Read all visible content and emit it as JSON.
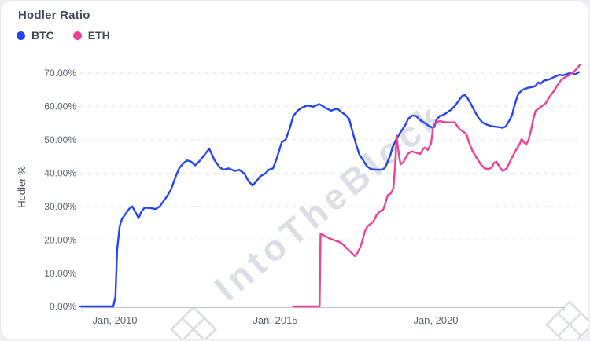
{
  "card": {
    "title": "Hodler Ratio"
  },
  "legend": [
    {
      "label": "BTC",
      "color": "#2446f0"
    },
    {
      "label": "ETH",
      "color": "#ee4195"
    }
  ],
  "y_axis": {
    "title": "Hodler %",
    "tick_values": [
      0,
      10,
      20,
      30,
      40,
      50,
      60,
      70
    ],
    "tick_labels": [
      "0.00%",
      "10.00%",
      "20.00%",
      "30.00%",
      "40.00%",
      "50.00%",
      "60.00%",
      "70.00%"
    ]
  },
  "x_axis": {
    "tick_years": [
      2010,
      2015,
      2020
    ],
    "tick_labels": [
      "Jan, 2010",
      "Jan, 2015",
      "Jan, 2020"
    ]
  },
  "watermark": {
    "text": "IntoTheBlock"
  },
  "colors": {
    "grid": "#e4e6eb",
    "axis": "#c2c6cf",
    "watermark": "#bdc3ce"
  },
  "chart_data": {
    "type": "line",
    "title": "Hodler Ratio",
    "xlabel": "",
    "ylabel": "Hodler %",
    "ylim": [
      0,
      70
    ],
    "xlim": [
      2008.9,
      2024.5
    ],
    "x_unit": "year (decimal)",
    "grid": "horizontal-dashed",
    "legend_position": "top-left",
    "series": [
      {
        "name": "BTC",
        "color": "#2446f0",
        "points": [
          [
            2008.9,
            0
          ],
          [
            2009.5,
            0
          ],
          [
            2009.95,
            0
          ],
          [
            2010.02,
            3
          ],
          [
            2010.07,
            17
          ],
          [
            2010.15,
            24
          ],
          [
            2010.22,
            26.2
          ],
          [
            2010.32,
            27.6
          ],
          [
            2010.44,
            29.2
          ],
          [
            2010.54,
            30.0
          ],
          [
            2010.66,
            28.0
          ],
          [
            2010.74,
            26.5
          ],
          [
            2010.83,
            28.5
          ],
          [
            2010.93,
            29.6
          ],
          [
            2011.1,
            29.5
          ],
          [
            2011.27,
            29.2
          ],
          [
            2011.4,
            30.0
          ],
          [
            2011.52,
            31.6
          ],
          [
            2011.64,
            33.2
          ],
          [
            2011.76,
            35.3
          ],
          [
            2011.89,
            38.8
          ],
          [
            2012.01,
            41.5
          ],
          [
            2012.13,
            42.9
          ],
          [
            2012.25,
            43.8
          ],
          [
            2012.38,
            43.4
          ],
          [
            2012.5,
            42.3
          ],
          [
            2012.62,
            43.4
          ],
          [
            2012.77,
            45.2
          ],
          [
            2012.94,
            47.3
          ],
          [
            2013.11,
            43.8
          ],
          [
            2013.26,
            41.8
          ],
          [
            2013.38,
            41.0
          ],
          [
            2013.55,
            41.4
          ],
          [
            2013.73,
            40.6
          ],
          [
            2013.87,
            41.0
          ],
          [
            2014.04,
            39.8
          ],
          [
            2014.17,
            37.5
          ],
          [
            2014.29,
            36.3
          ],
          [
            2014.41,
            37.5
          ],
          [
            2014.53,
            39.0
          ],
          [
            2014.68,
            39.8
          ],
          [
            2014.8,
            41.0
          ],
          [
            2014.93,
            41.4
          ],
          [
            2015.05,
            44.5
          ],
          [
            2015.2,
            49.3
          ],
          [
            2015.32,
            50.0
          ],
          [
            2015.44,
            53.2
          ],
          [
            2015.56,
            57.1
          ],
          [
            2015.69,
            58.7
          ],
          [
            2015.81,
            59.5
          ],
          [
            2016.0,
            60.3
          ],
          [
            2016.18,
            59.9
          ],
          [
            2016.37,
            60.7
          ],
          [
            2016.57,
            59.5
          ],
          [
            2016.74,
            58.7
          ],
          [
            2016.84,
            59.1
          ],
          [
            2016.94,
            59.3
          ],
          [
            2017.06,
            58.3
          ],
          [
            2017.18,
            57.5
          ],
          [
            2017.3,
            56.3
          ],
          [
            2017.43,
            51.6
          ],
          [
            2017.52,
            48.5
          ],
          [
            2017.62,
            45.5
          ],
          [
            2017.72,
            44.1
          ],
          [
            2017.84,
            42.2
          ],
          [
            2017.97,
            41.2
          ],
          [
            2018.11,
            41.0
          ],
          [
            2018.26,
            41.0
          ],
          [
            2018.36,
            41.1
          ],
          [
            2018.43,
            41.8
          ],
          [
            2018.5,
            43.4
          ],
          [
            2018.58,
            45.3
          ],
          [
            2018.65,
            47.7
          ],
          [
            2018.75,
            49.8
          ],
          [
            2018.85,
            51.5
          ],
          [
            2018.95,
            53.0
          ],
          [
            2019.04,
            54.2
          ],
          [
            2019.14,
            56.3
          ],
          [
            2019.27,
            57.3
          ],
          [
            2019.39,
            57.1
          ],
          [
            2019.51,
            55.9
          ],
          [
            2019.63,
            55.2
          ],
          [
            2019.75,
            54.4
          ],
          [
            2019.88,
            53.7
          ],
          [
            2019.95,
            53.8
          ],
          [
            2020.02,
            56.0
          ],
          [
            2020.12,
            57.1
          ],
          [
            2020.25,
            57.5
          ],
          [
            2020.37,
            58.3
          ],
          [
            2020.49,
            59.1
          ],
          [
            2020.61,
            60.3
          ],
          [
            2020.74,
            62.1
          ],
          [
            2020.83,
            63.2
          ],
          [
            2020.91,
            63.4
          ],
          [
            2020.98,
            62.6
          ],
          [
            2021.08,
            61.0
          ],
          [
            2021.2,
            58.7
          ],
          [
            2021.32,
            56.7
          ],
          [
            2021.45,
            55.2
          ],
          [
            2021.57,
            54.6
          ],
          [
            2021.69,
            54.2
          ],
          [
            2021.81,
            54.0
          ],
          [
            2021.96,
            53.8
          ],
          [
            2022.08,
            53.6
          ],
          [
            2022.18,
            54.0
          ],
          [
            2022.3,
            55.9
          ],
          [
            2022.38,
            57.5
          ],
          [
            2022.43,
            59.5
          ],
          [
            2022.5,
            61.8
          ],
          [
            2022.57,
            63.8
          ],
          [
            2022.7,
            65.0
          ],
          [
            2022.87,
            65.6
          ],
          [
            2023.04,
            65.9
          ],
          [
            2023.11,
            66.2
          ],
          [
            2023.19,
            67.2
          ],
          [
            2023.26,
            66.8
          ],
          [
            2023.36,
            67.7
          ],
          [
            2023.53,
            68.1
          ],
          [
            2023.68,
            68.8
          ],
          [
            2023.85,
            69.5
          ],
          [
            2023.95,
            69.3
          ],
          [
            2024.05,
            69.6
          ],
          [
            2024.14,
            69.9
          ],
          [
            2024.24,
            70.1
          ],
          [
            2024.34,
            69.6
          ],
          [
            2024.46,
            70.3
          ]
        ]
      },
      {
        "name": "ETH",
        "color": "#ee4195",
        "points": [
          [
            2015.55,
            0
          ],
          [
            2015.8,
            0
          ],
          [
            2016.1,
            0
          ],
          [
            2016.38,
            0
          ],
          [
            2016.41,
            21.8
          ],
          [
            2016.57,
            21.0
          ],
          [
            2016.74,
            20.2
          ],
          [
            2016.91,
            19.6
          ],
          [
            2016.99,
            19.4
          ],
          [
            2017.11,
            18.6
          ],
          [
            2017.23,
            17.4
          ],
          [
            2017.35,
            16.3
          ],
          [
            2017.48,
            15.1
          ],
          [
            2017.55,
            15.9
          ],
          [
            2017.65,
            17.8
          ],
          [
            2017.72,
            20.0
          ],
          [
            2017.79,
            22.5
          ],
          [
            2017.87,
            24.0
          ],
          [
            2017.97,
            24.8
          ],
          [
            2018.06,
            25.5
          ],
          [
            2018.16,
            27.5
          ],
          [
            2018.26,
            28.5
          ],
          [
            2018.36,
            29.0
          ],
          [
            2018.43,
            31.0
          ],
          [
            2018.5,
            33.3
          ],
          [
            2018.6,
            33.9
          ],
          [
            2018.68,
            35.5
          ],
          [
            2018.73,
            42.0
          ],
          [
            2018.78,
            51.2
          ],
          [
            2018.82,
            47.5
          ],
          [
            2018.9,
            42.6
          ],
          [
            2019.0,
            43.4
          ],
          [
            2019.12,
            45.7
          ],
          [
            2019.24,
            46.5
          ],
          [
            2019.39,
            46.1
          ],
          [
            2019.51,
            45.7
          ],
          [
            2019.61,
            47.3
          ],
          [
            2019.68,
            47.7
          ],
          [
            2019.75,
            46.9
          ],
          [
            2019.85,
            48.9
          ],
          [
            2019.93,
            54.4
          ],
          [
            2020.0,
            55.2
          ],
          [
            2020.12,
            55.6
          ],
          [
            2020.29,
            55.3
          ],
          [
            2020.47,
            55.2
          ],
          [
            2020.59,
            55.3
          ],
          [
            2020.66,
            54.2
          ],
          [
            2020.74,
            53.2
          ],
          [
            2020.86,
            52.4
          ],
          [
            2020.96,
            51.6
          ],
          [
            2021.03,
            49.3
          ],
          [
            2021.15,
            46.5
          ],
          [
            2021.27,
            44.6
          ],
          [
            2021.4,
            42.6
          ],
          [
            2021.52,
            41.4
          ],
          [
            2021.64,
            41.2
          ],
          [
            2021.74,
            41.6
          ],
          [
            2021.81,
            43.0
          ],
          [
            2021.89,
            43.4
          ],
          [
            2021.96,
            42.2
          ],
          [
            2022.08,
            40.6
          ],
          [
            2022.21,
            41.4
          ],
          [
            2022.33,
            43.8
          ],
          [
            2022.45,
            46.1
          ],
          [
            2022.55,
            47.7
          ],
          [
            2022.62,
            48.9
          ],
          [
            2022.67,
            50.2
          ],
          [
            2022.75,
            49.2
          ],
          [
            2022.82,
            48.6
          ],
          [
            2022.89,
            50.0
          ],
          [
            2022.97,
            53.0
          ],
          [
            2023.04,
            56.3
          ],
          [
            2023.11,
            58.7
          ],
          [
            2023.28,
            59.9
          ],
          [
            2023.43,
            61.0
          ],
          [
            2023.55,
            63.0
          ],
          [
            2023.68,
            64.6
          ],
          [
            2023.8,
            66.5
          ],
          [
            2023.92,
            68.1
          ],
          [
            2024.05,
            68.9
          ],
          [
            2024.14,
            69.3
          ],
          [
            2024.24,
            70.0
          ],
          [
            2024.34,
            70.8
          ],
          [
            2024.41,
            71.5
          ],
          [
            2024.48,
            72.4
          ]
        ]
      }
    ]
  }
}
